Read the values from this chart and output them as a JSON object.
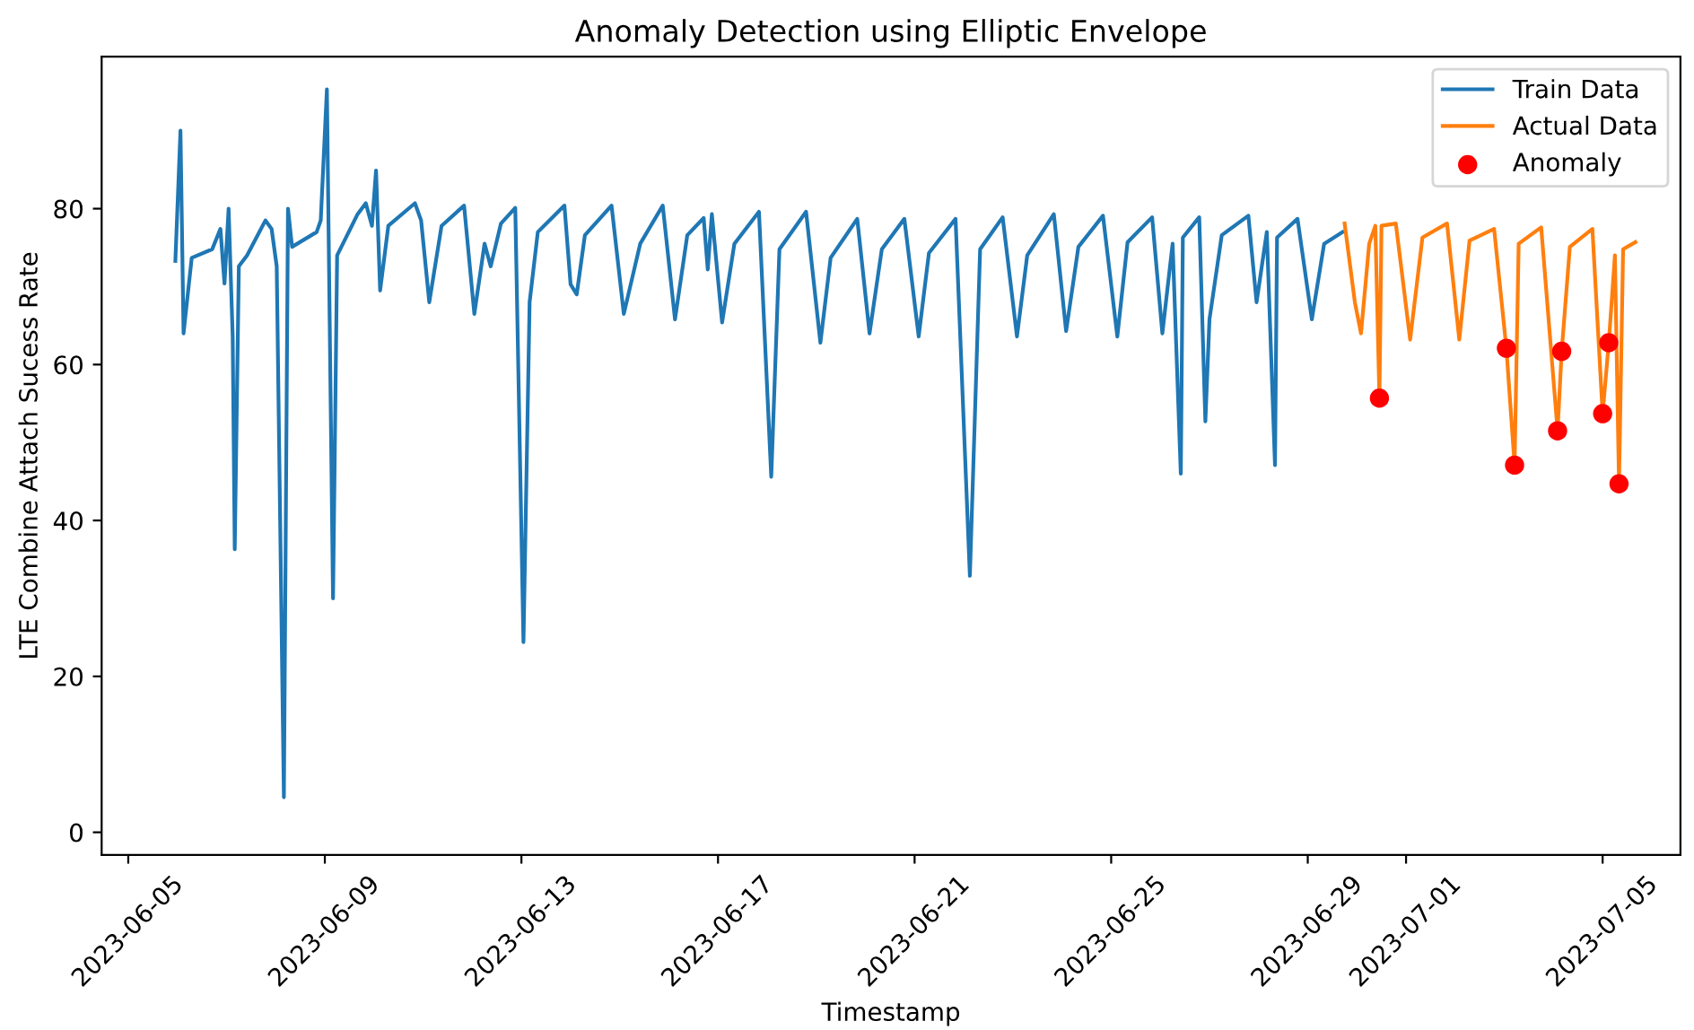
{
  "chart_data": {
    "type": "line",
    "title": "Anomaly Detection using Elliptic Envelope",
    "xlabel": "Timestamp",
    "ylabel": "LTE Combine Attach Sucess Rate",
    "xlim": [
      "2023-06-04T11:00",
      "2023-07-06T14:00"
    ],
    "ylim": [
      -2.9,
      99.5
    ],
    "yticks": [
      0,
      20,
      40,
      60,
      80
    ],
    "xticks": [
      "2023-06-05",
      "2023-06-09",
      "2023-06-13",
      "2023-06-17",
      "2023-06-21",
      "2023-06-25",
      "2023-06-29",
      "2023-07-01",
      "2023-07-05"
    ],
    "grid": false,
    "legend": "top right",
    "series": [
      {
        "name": "Train Data",
        "color": "#1f77b4",
        "x": [
          "2023-06-05T23:00",
          "2023-06-06T01:30",
          "2023-06-06T03:00",
          "2023-06-06T07:00",
          "2023-06-06T17:00",
          "2023-06-06T21:00",
          "2023-06-06T23:00",
          "2023-06-07T01:00",
          "2023-06-07T03:00",
          "2023-06-07T04:00",
          "2023-06-07T06:00",
          "2023-06-07T10:00",
          "2023-06-07T19:00",
          "2023-06-07T22:00",
          "2023-06-08T00:30",
          "2023-06-08T04:00",
          "2023-06-08T06:00",
          "2023-06-08T08:00",
          "2023-06-08T20:00",
          "2023-06-08T22:00",
          "2023-06-09T01:00",
          "2023-06-09T04:00",
          "2023-06-09T06:00",
          "2023-06-09T16:00",
          "2023-06-09T20:00",
          "2023-06-09T23:00",
          "2023-06-10T01:00",
          "2023-06-10T03:00",
          "2023-06-10T07:00",
          "2023-06-10T20:00",
          "2023-06-10T23:00",
          "2023-06-11T03:00",
          "2023-06-11T09:00",
          "2023-06-11T20:00",
          "2023-06-12T01:00",
          "2023-06-12T06:00",
          "2023-06-12T09:00",
          "2023-06-12T14:00",
          "2023-06-12T21:00",
          "2023-06-13T01:00",
          "2023-06-13T04:00",
          "2023-06-13T08:00",
          "2023-06-13T21:00",
          "2023-06-14T00:00",
          "2023-06-14T03:00",
          "2023-06-14T07:00",
          "2023-06-14T20:00",
          "2023-06-15T02:00",
          "2023-06-15T10:00",
          "2023-06-15T21:00",
          "2023-06-16T03:00",
          "2023-06-16T09:00",
          "2023-06-16T17:00",
          "2023-06-16T19:00",
          "2023-06-16T21:00",
          "2023-06-17T02:00",
          "2023-06-17T08:00",
          "2023-06-17T20:00",
          "2023-06-18T02:00",
          "2023-06-18T06:00",
          "2023-06-18T19:00",
          "2023-06-19T02:00",
          "2023-06-19T07:00",
          "2023-06-19T20:00",
          "2023-06-20T02:00",
          "2023-06-20T08:00",
          "2023-06-20T19:00",
          "2023-06-21T02:00",
          "2023-06-21T07:00",
          "2023-06-21T20:00",
          "2023-06-22T03:00",
          "2023-06-22T08:00",
          "2023-06-22T19:00",
          "2023-06-23T02:00",
          "2023-06-23T07:00",
          "2023-06-23T20:00",
          "2023-06-24T02:00",
          "2023-06-24T08:00",
          "2023-06-24T20:00",
          "2023-06-25T03:00",
          "2023-06-25T08:00",
          "2023-06-25T20:00",
          "2023-06-26T01:00",
          "2023-06-26T06:00",
          "2023-06-26T10:00",
          "2023-06-26T11:00",
          "2023-06-26T19:00",
          "2023-06-26T22:00",
          "2023-06-27T00:00",
          "2023-06-27T06:00",
          "2023-06-27T19:00",
          "2023-06-27T23:00",
          "2023-06-28T04:00",
          "2023-06-28T08:00",
          "2023-06-28T09:00",
          "2023-06-28T19:00",
          "2023-06-29T02:00",
          "2023-06-29T08:00",
          "2023-06-29T17:00"
        ],
        "values": [
          73.3,
          90,
          64,
          73.7,
          74.8,
          77.4,
          70.4,
          80,
          63.6,
          36.3,
          72.6,
          74,
          78.5,
          77.4,
          72.6,
          4.5,
          80,
          75.1,
          77,
          78.5,
          95.3,
          30,
          74,
          79.3,
          80.7,
          77.8,
          84.9,
          69.5,
          77.8,
          80.7,
          78.5,
          68,
          77.8,
          80.4,
          66.5,
          75.5,
          72.6,
          78.1,
          80.1,
          24.4,
          68,
          77,
          80.4,
          70.3,
          69,
          76.6,
          80.4,
          66.5,
          75.5,
          80.4,
          65.8,
          76.6,
          78.8,
          72.2,
          79.3,
          65.4,
          75.5,
          79.6,
          45.6,
          74.8,
          79.6,
          62.8,
          73.7,
          78.7,
          64,
          74.8,
          78.7,
          63.6,
          74.3,
          78.7,
          32.9,
          74.8,
          78.9,
          63.6,
          74,
          79.3,
          64.3,
          75.1,
          79.1,
          63.6,
          75.7,
          78.9,
          64,
          75.5,
          46,
          76.3,
          78.9,
          52.7,
          65.8,
          76.6,
          79.1,
          68,
          77,
          47.1,
          76.3,
          78.7,
          65.8,
          75.5,
          77
        ]
      },
      {
        "name": "Actual Data",
        "color": "#ff7f0e",
        "x": [
          "2023-06-29T18:00",
          "2023-06-29T23:00",
          "2023-06-30T02:00",
          "2023-06-30T06:00",
          "2023-06-30T09:00",
          "2023-06-30T11:00",
          "2023-06-30T12:00",
          "2023-06-30T19:00",
          "2023-07-01T02:00",
          "2023-07-01T08:00",
          "2023-07-01T20:00",
          "2023-07-02T02:00",
          "2023-07-02T07:00",
          "2023-07-02T19:00",
          "2023-07-03T01:00",
          "2023-07-03T05:00",
          "2023-07-03T07:00",
          "2023-07-03T18:00",
          "2023-07-04T02:00",
          "2023-07-04T04:00",
          "2023-07-04T08:00",
          "2023-07-04T19:00",
          "2023-07-05T00:00",
          "2023-07-05T03:00",
          "2023-07-05T06:00",
          "2023-07-05T08:00",
          "2023-07-05T10:00",
          "2023-07-05T16:00"
        ],
        "values": [
          78.1,
          68,
          64,
          75.5,
          77.8,
          55.7,
          77.8,
          78.1,
          63.2,
          76.3,
          78.1,
          63.2,
          75.9,
          77.4,
          62.1,
          47.1,
          75.5,
          77.6,
          51.5,
          61.7,
          75.1,
          77.4,
          53.7,
          62.8,
          74,
          44.7,
          74.8,
          75.7
        ]
      },
      {
        "name": "Anomaly",
        "type": "scatter",
        "color": "#ff0000",
        "marker": "circle",
        "x": [
          "2023-06-30T11:00",
          "2023-07-03T01:00",
          "2023-07-03T05:00",
          "2023-07-04T02:00",
          "2023-07-04T04:00",
          "2023-07-05T00:00",
          "2023-07-05T03:00",
          "2023-07-05T08:00"
        ],
        "values": [
          55.7,
          62.1,
          47.1,
          51.5,
          61.7,
          53.7,
          62.8,
          44.7
        ]
      }
    ]
  }
}
